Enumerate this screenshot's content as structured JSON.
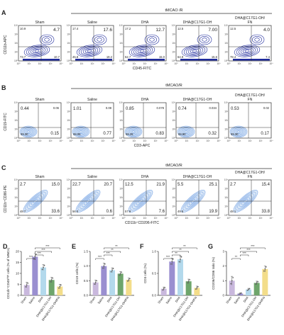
{
  "panels": {
    "A": {
      "letter": "A",
      "group_header": "tMCAO /R",
      "y_axis_label": "CD11b-APC",
      "x_axis_label": "CD45-FITC",
      "plots": [
        {
          "title": "Sham",
          "quadrants": {
            "ul": "10.9",
            "ur": "4.7",
            "ll": "73.7",
            "lr": "10.7"
          }
        },
        {
          "title": "Saline",
          "quadrants": {
            "ul": "17.4",
            "ur": "17.6",
            "ll": "45.8",
            "lr": "19.2"
          }
        },
        {
          "title": "DHA",
          "quadrants": {
            "ul": "17.2",
            "ur": "12.7",
            "ll": "52.7",
            "lr": "15.0"
          }
        },
        {
          "title": "DHA@C17G1-OH",
          "quadrants": {
            "ul": "12.5",
            "ur": "7.00",
            "ll": "64.9",
            "lr": "15.6"
          }
        },
        {
          "title": "DHA@C17G1-OH/\nFN",
          "quadrants": {
            "ul": "12.5",
            "ur": "4.0",
            "ll": "78.4",
            "lr": "7.4"
          }
        }
      ]
    },
    "B": {
      "letter": "B",
      "group_header": "tMCAO/R",
      "y_axis_label": "CD19-FITC",
      "x_axis_label": "CD3-APC",
      "plots": [
        {
          "title": "Sham",
          "quadrants": {
            "ul": "0.44",
            "ur": "0.06",
            "ll": "99.30",
            "lr": "0.15"
          }
        },
        {
          "title": "Saline",
          "quadrants": {
            "ul": "1.01",
            "ur": "0.08",
            "ll": "98.05",
            "lr": "0.77"
          }
        },
        {
          "title": "DHA",
          "quadrants": {
            "ul": "0.85",
            "ur": "0.078",
            "ll": "98.25",
            "lr": "0.83"
          }
        },
        {
          "title": "DHA@C17G1-OH",
          "quadrants": {
            "ul": "0.74",
            "ur": "0.034",
            "ll": "98.90",
            "lr": "0.32"
          }
        },
        {
          "title": "DHA@C17G1-OH/\nFN",
          "quadrants": {
            "ul": "0.53",
            "ur": "0.02",
            "ll": "99.30",
            "lr": "0.17"
          }
        }
      ]
    },
    "C": {
      "letter": "C",
      "group_header": "tMCAO/R",
      "y_axis_label": "CD11b⁺CD86-PE",
      "x_axis_label": "CD11b⁺CD206-FITC",
      "plots": [
        {
          "title": "Sham",
          "quadrants": {
            "ul": "2.7",
            "ur": "15.0",
            "ll": "48.7",
            "lr": "33.6"
          }
        },
        {
          "title": "Saline",
          "quadrants": {
            "ul": "22.7",
            "ur": "20.7",
            "ll": "56.0",
            "lr": "0.6"
          }
        },
        {
          "title": "DHA",
          "quadrants": {
            "ul": "12.5",
            "ur": "21.9",
            "ll": "57.9",
            "lr": "7.6"
          }
        },
        {
          "title": "DHA@C17G1-OH",
          "quadrants": {
            "ul": "5.5",
            "ur": "25.1",
            "ll": "49.5",
            "lr": "19.9"
          }
        },
        {
          "title": "DHA@C17G1-OH/\nFN",
          "quadrants": {
            "ul": "2.7",
            "ur": "15.4",
            "ll": "48.1",
            "lr": "33.8"
          }
        }
      ]
    },
    "flow_axis_ticks": [
      "10⁰",
      "10¹",
      "10²",
      "10³",
      "10⁴"
    ]
  },
  "chart_data": [
    {
      "type": "bar",
      "panel": "D",
      "ylabel": "CD11b⁺CD45ʰⁱᵍʰ cells (% of MNCs)",
      "ylim": [
        0,
        20
      ],
      "yticks": [
        "0",
        "5",
        "10",
        "15",
        "20"
      ],
      "categories": [
        "Sham",
        "Saline",
        "DHA",
        "DHA@C17G1-OH",
        "DHA@C17G1-OH/FN"
      ],
      "values": [
        4.7,
        17.6,
        12.7,
        7.0,
        4.0
      ],
      "errors": [
        1.2,
        1.5,
        1.3,
        1.2,
        1.0
      ],
      "significance": [
        "***",
        "***",
        "***",
        "***"
      ]
    },
    {
      "type": "bar",
      "panel": "E",
      "ylabel": "CD19 cells (%)",
      "ylim": [
        0,
        1.5
      ],
      "yticks": [
        "0.0",
        "0.5",
        "1.0",
        "1.5"
      ],
      "categories": [
        "Sham",
        "Saline",
        "DHA",
        "DHA@C17G1-OH",
        "DHA@C17G1-OH/FN"
      ],
      "values": [
        0.44,
        1.0,
        0.86,
        0.74,
        0.53
      ],
      "errors": [
        0.08,
        0.1,
        0.08,
        0.07,
        0.06
      ],
      "significance": [
        "***",
        "***",
        "**",
        "**"
      ]
    },
    {
      "type": "bar",
      "panel": "F",
      "ylabel": "CD3 cells (%)",
      "ylim": [
        0,
        1.0
      ],
      "yticks": [
        "0.0",
        "0.5",
        "1.0"
      ],
      "categories": [
        "Sham",
        "Saline",
        "DHA",
        "DHA@C17G1-OH",
        "DHA@C17G1-OH/FN"
      ],
      "values": [
        0.15,
        0.77,
        0.82,
        0.32,
        0.17
      ],
      "errors": [
        0.04,
        0.08,
        0.08,
        0.05,
        0.04
      ],
      "significance": [
        "***",
        "**",
        "**",
        "**"
      ]
    },
    {
      "type": "bar",
      "panel": "G",
      "ylabel": "CD206/CD86 ratio (%)",
      "ylim": [
        0,
        3
      ],
      "yticks": [
        "0",
        "1",
        "2",
        "3"
      ],
      "categories": [
        "Sham",
        "Saline",
        "DHA",
        "DHA@C17G1-OH",
        "DHA@C17G1-OH/FN"
      ],
      "values": [
        1.0,
        0.12,
        0.4,
        0.85,
        1.8
      ],
      "errors": [
        0.3,
        0.05,
        0.08,
        0.12,
        0.2
      ],
      "significance": [
        "**",
        "***",
        "***",
        "***"
      ]
    }
  ],
  "colors": {
    "bars": [
      "#c9b8dd",
      "#9a8fd0",
      "#b3d9ec",
      "#6ea56b",
      "#f3dd8a"
    ],
    "contour_dark": "#1e2a9c",
    "contour_light": "#7ea8e6",
    "contour_fill": "#dbe8f7"
  }
}
